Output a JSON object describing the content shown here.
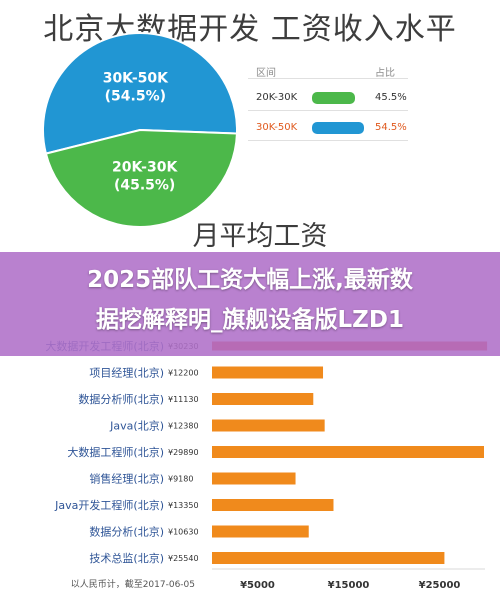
{
  "pie_chart": {
    "title": "北京大数据开发 工资收入水平",
    "subtitle": "月平均工资",
    "slices": [
      {
        "label": "30K-50K",
        "pct_label": "(54.5%)",
        "value": 54.5,
        "color": "#2196d3"
      },
      {
        "label": "20K-30K",
        "pct_label": "(45.5%)",
        "value": 45.5,
        "color": "#4cb84a"
      }
    ],
    "table": {
      "header_range": "区间",
      "header_share": "占比",
      "rows": [
        {
          "range": "20K-30K",
          "pct": "45.5%",
          "value": 45.5,
          "color": "#4cb84a",
          "highlight": false
        },
        {
          "range": "30K-50K",
          "pct": "54.5%",
          "value": 54.5,
          "color": "#2196d3",
          "highlight": true
        }
      ]
    }
  },
  "overlay": {
    "line1": "2025部队工资大幅上涨,最新数",
    "line2": "据挖解释明_旗舰设备版LZD1"
  },
  "chart_data": {
    "type": "bar",
    "orientation": "horizontal",
    "categories": [
      "大数据开发工程师(北京) ¥30230",
      "项目经理(北京) ¥12200",
      "数据分析师(北京) ¥11130",
      "Java(北京) ¥12380",
      "大数据工程师(北京) ¥29890",
      "销售经理(北京) ¥9180",
      "Java开发工程师(北京) ¥13350",
      "数据分析(北京) ¥10630",
      "技术总监(北京) ¥25540"
    ],
    "labels": [
      "大数据开发工程师(北京)",
      "项目经理(北京)",
      "数据分析师(北京)",
      "Java(北京)",
      "大数据工程师(北京)",
      "销售经理(北京)",
      "Java开发工程师(北京)",
      "数据分析(北京)",
      "技术总监(北京)"
    ],
    "value_labels": [
      "¥30230",
      "¥12200",
      "¥11130",
      "¥12380",
      "¥29890",
      "¥9180",
      "¥13350",
      "¥10630",
      "¥25540"
    ],
    "values": [
      30230,
      12200,
      11130,
      12380,
      29890,
      9180,
      13350,
      10630,
      25540
    ],
    "xlim": [
      0,
      30000
    ],
    "xticks": [
      "¥5000",
      "¥15000",
      "¥25000"
    ],
    "xtick_values": [
      5000,
      15000,
      25000
    ],
    "footnote": "以人民币计，截至2017-06-05",
    "color": "#f08a1c",
    "highlight_color": "#e8482c"
  }
}
